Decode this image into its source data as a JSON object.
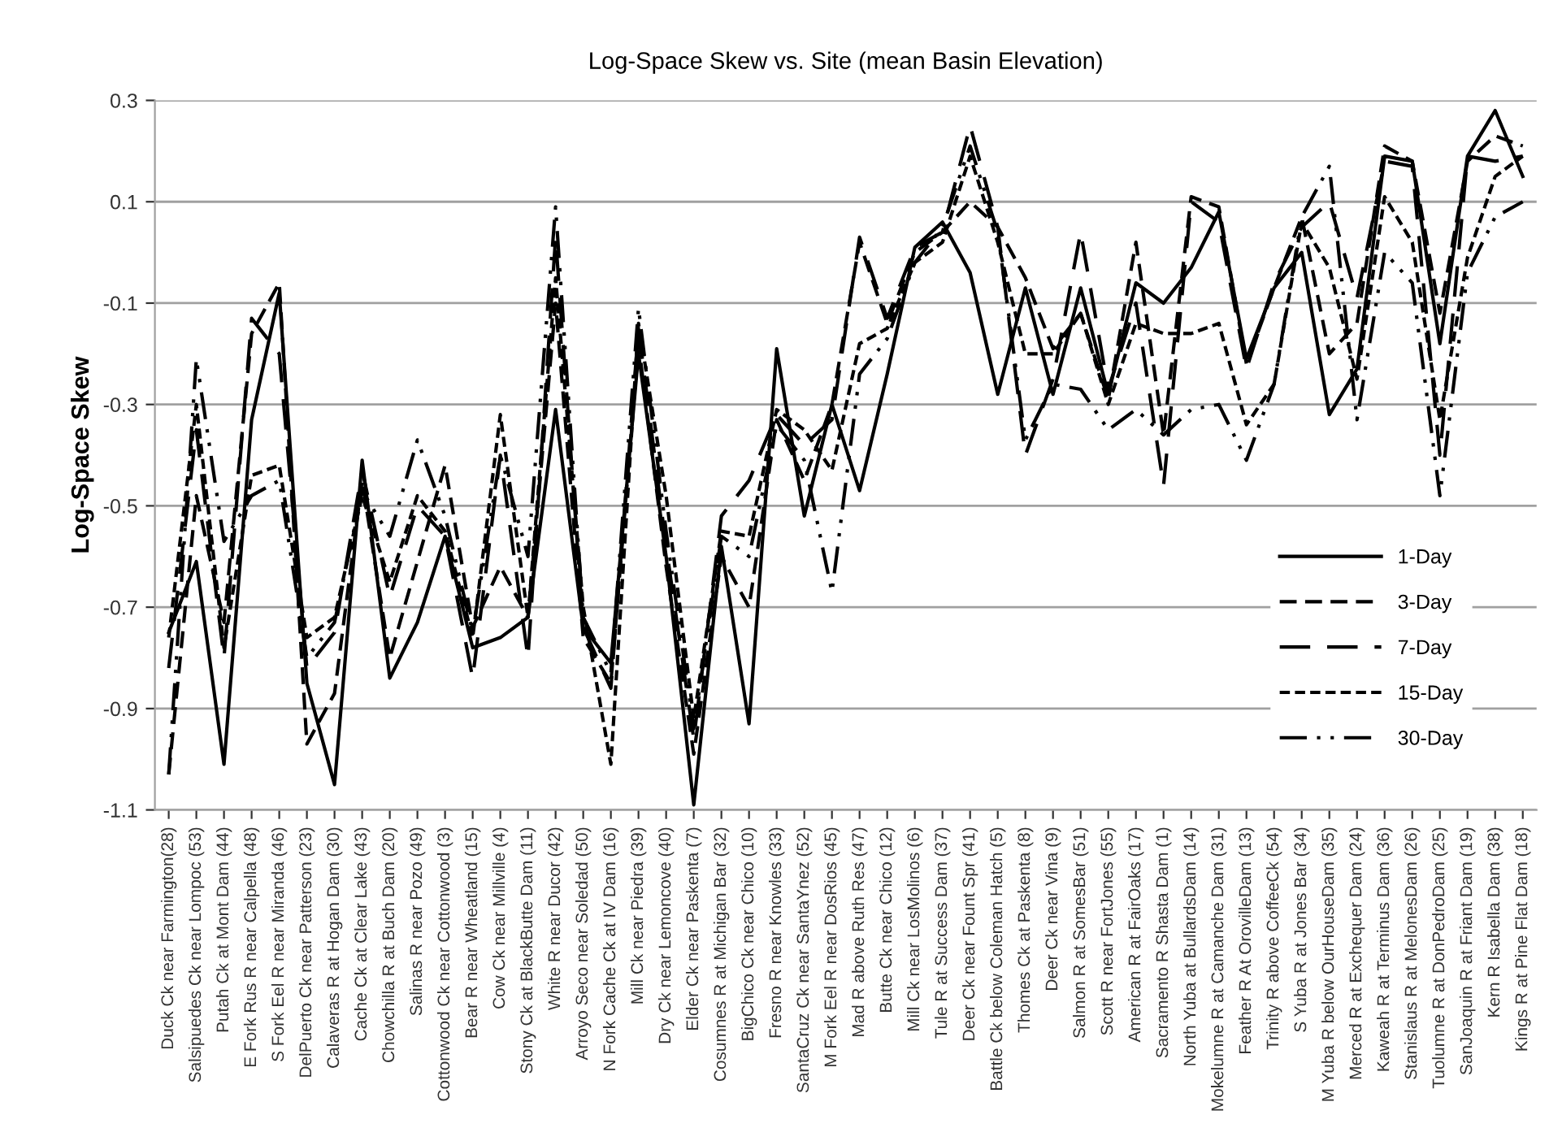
{
  "chart_data": {
    "type": "line",
    "title": "Log-Space Skew vs. Site (mean Basin Elevation)",
    "ylabel": "Log-Space Skew",
    "categories": [
      "Duck Ck near Farmington(28)",
      "Salsipuedes Ck near Lompoc (53)",
      "Putah Ck at Mont Dam (44)",
      "E Fork Rus R near Calpella (48)",
      "S Fork Eel R near Miranda (46)",
      "DelPuerto Ck near Patterson (23)",
      "Calaveras R at Hogan Dam (30)",
      "Cache Ck at Clear Lake (43)",
      "Chowchilla R at Buch Dam (20)",
      "Salinas R near Pozo (49)",
      "Cottonwood Ck near Cottonwood (3)",
      "Bear R near Wheatland (15)",
      "Cow Ck near Millville (4)",
      "Stony Ck at BlackButte Dam (11)",
      "White R near Ducor (42)",
      "Arroyo Seco near Soledad (50)",
      "N Fork Cache Ck at IV Dam (16)",
      "Mill Ck near Piedra (39)",
      "Dry Ck near Lemoncove (40)",
      "Elder Ck near Paskenta (7)",
      "Cosumnes R at Michigan Bar (32)",
      "BigChico Ck near Chico (10)",
      "Fresno R near Knowles (33)",
      "SantaCruz Ck near SantaYnez (52)",
      "M Fork Eel R near DosRios (45)",
      "Mad R above Ruth Res (47)",
      "Butte Ck near Chico (12)",
      "Mill Ck near LosMolinos (6)",
      "Tule R at Success Dam (37)",
      "Deer Ck near Fount Spr (41)",
      "Battle Ck below Coleman Hatch (5)",
      "Thomes Ck at Paskenta (8)",
      "Deer Ck near Vina (9)",
      "Salmon R at SomesBar (51)",
      "Scott R near FortJones (55)",
      "American R at FairOaks (17)",
      "Sacramento R Shasta Dam (1)",
      "North Yuba at BullardsDam (14)",
      "Mokelumne R at Camanche Dam (31)",
      "Feather R At OrovilleDam (13)",
      "Trinity R above CoffeeCk (54)",
      "S Yuba R at Jones Bar (34)",
      "M Yuba R below OurHouseDam (35)",
      "Merced R at Exchequer Dam (24)",
      "Kaweah R at Terminus Dam (36)",
      "Stanislaus R at MelonesDam (26)",
      "Tuolumne R at DonPedroDam (25)",
      "SanJoaquin R at Friant Dam (19)",
      "Kern R Isabella Dam (38)",
      "Kings R at Pine Flat Dam (18)"
    ],
    "series": [
      {
        "name": "1-Day",
        "color": "#000000",
        "line_style": "solid",
        "values": [
          -0.75,
          -0.61,
          -1.01,
          -0.33,
          -0.08,
          -0.85,
          -1.05,
          -0.41,
          -0.84,
          -0.73,
          -0.56,
          -0.78,
          -0.76,
          -0.72,
          -0.31,
          -0.74,
          -0.81,
          -0.2,
          -0.6,
          -1.09,
          -0.58,
          -0.93,
          -0.19,
          -0.52,
          -0.3,
          -0.47,
          -0.24,
          0.01,
          0.06,
          -0.04,
          -0.28,
          -0.07,
          -0.28,
          -0.07,
          -0.28,
          -0.06,
          -0.1,
          -0.03,
          0.08,
          -0.21,
          -0.07,
          0.0,
          -0.32,
          -0.23,
          0.19,
          0.18,
          -0.18,
          0.19,
          0.28,
          0.15
        ]
      },
      {
        "name": "3-Day",
        "color": "#000000",
        "line_style": "dashed",
        "values": [
          -1.03,
          -0.48,
          -0.73,
          -0.16,
          -0.06,
          -0.97,
          -0.87,
          -0.45,
          -0.8,
          -0.61,
          -0.42,
          -0.74,
          -0.62,
          -0.72,
          -0.1,
          -0.76,
          -0.85,
          -0.18,
          -0.62,
          -0.99,
          -0.6,
          -0.7,
          -0.33,
          -0.45,
          -0.3,
          0.02,
          -0.14,
          0.0,
          0.04,
          0.1,
          0.05,
          -0.05,
          -0.19,
          -0.12,
          -0.29,
          0.02,
          -0.36,
          0.11,
          0.09,
          -0.22,
          -0.07,
          0.07,
          -0.2,
          -0.14,
          0.21,
          0.18,
          -0.12,
          0.18,
          0.23,
          0.21
        ]
      },
      {
        "name": "7-Day",
        "color": "#000000",
        "line_style": "longdash",
        "values": [
          -0.82,
          -0.35,
          -0.8,
          -0.13,
          -0.2,
          -0.82,
          -0.75,
          -0.43,
          -0.68,
          -0.5,
          -0.56,
          -0.84,
          -0.4,
          -0.8,
          0.03,
          -0.74,
          -0.86,
          -0.15,
          -0.58,
          -0.96,
          -0.52,
          -0.45,
          -0.32,
          -0.38,
          -0.33,
          0.03,
          -0.13,
          0.01,
          0.04,
          0.25,
          0.05,
          -0.4,
          -0.25,
          0.04,
          -0.27,
          -0.1,
          -0.46,
          0.1,
          0.06,
          -0.23,
          -0.06,
          0.05,
          0.1,
          -0.09,
          0.18,
          0.17,
          -0.4,
          0.19,
          0.18,
          0.19
        ]
      },
      {
        "name": "15-Day",
        "color": "#000000",
        "line_style": "dotted",
        "values": [
          -0.76,
          -0.3,
          -0.78,
          -0.44,
          -0.42,
          -0.76,
          -0.72,
          -0.48,
          -0.65,
          -0.48,
          -0.55,
          -0.76,
          -0.32,
          -0.72,
          -0.05,
          -0.7,
          -1.01,
          -0.14,
          -0.48,
          -0.92,
          -0.55,
          -0.56,
          -0.31,
          -0.35,
          -0.43,
          -0.18,
          -0.15,
          -0.02,
          0.02,
          0.19,
          0.02,
          -0.2,
          -0.2,
          -0.12,
          -0.3,
          -0.14,
          -0.16,
          -0.16,
          -0.14,
          -0.34,
          -0.26,
          0.06,
          -0.03,
          -0.25,
          0.11,
          0.02,
          -0.33,
          -0.01,
          0.15,
          0.19
        ]
      },
      {
        "name": "30-Day",
        "color": "#000000",
        "line_style": "dashdotdot",
        "values": [
          -1.03,
          -0.21,
          -0.57,
          -0.48,
          -0.45,
          -0.8,
          -0.73,
          -0.47,
          -0.56,
          -0.37,
          -0.52,
          -0.75,
          -0.4,
          -0.6,
          0.09,
          -0.72,
          -0.83,
          -0.11,
          -0.55,
          -0.94,
          -0.56,
          -0.6,
          -0.34,
          -0.41,
          -0.67,
          -0.24,
          -0.17,
          -0.02,
          0.05,
          0.21,
          0.04,
          -0.37,
          -0.26,
          -0.27,
          -0.35,
          -0.31,
          -0.36,
          -0.31,
          -0.3,
          -0.41,
          -0.26,
          0.07,
          0.17,
          -0.33,
          0.0,
          -0.06,
          -0.48,
          -0.04,
          0.07,
          0.1
        ]
      }
    ],
    "ylim": [
      -1.1,
      0.3
    ],
    "yticks": [
      -1.1,
      -0.9,
      -0.7,
      -0.5,
      -0.3,
      -0.1,
      0.1,
      0.3
    ],
    "grid": "y",
    "legend": "lower right"
  }
}
